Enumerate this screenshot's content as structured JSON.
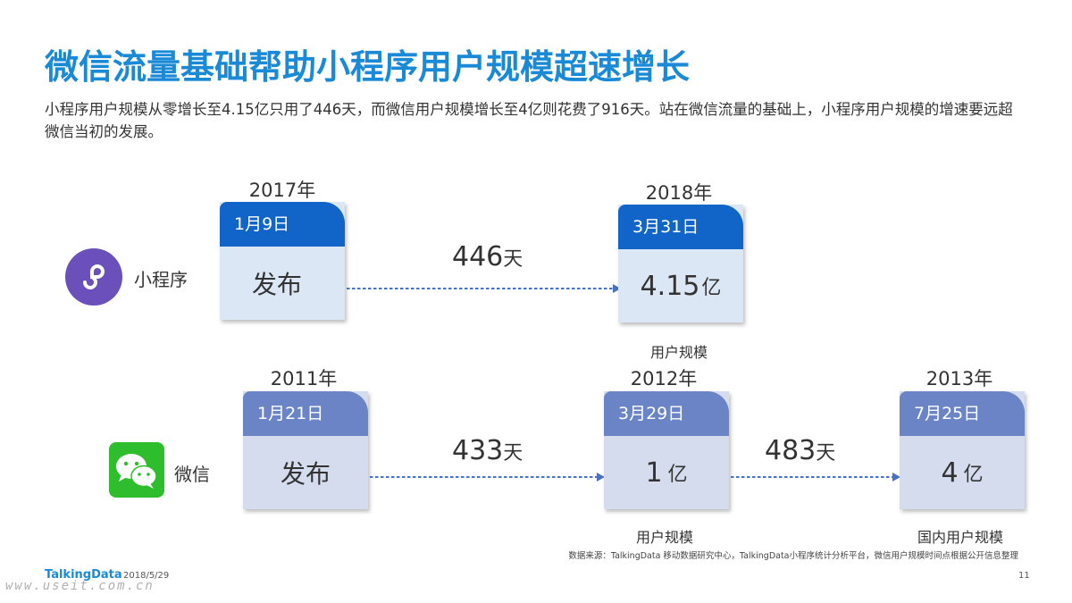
{
  "title": "微信流量基础帮助小程序用户规模超速增长",
  "subtitle": "小程序用户规模从零增长至4.15亿只用了446天，而微信用户规模增长至4亿则花费了916天。站在微信流量的基础上，小程序用户规模的增速要远超微信当初的发展。",
  "mini_program": {
    "name": "小程序",
    "icon": "mini-program-icon",
    "color": "#6b4fbb",
    "start": {
      "year": "2017年",
      "date": "1月9日",
      "value": "发布"
    },
    "gap": {
      "num": "446",
      "unit": "天"
    },
    "end": {
      "year": "2018年",
      "date": "3月31日",
      "num": "4.15",
      "unit": "亿",
      "caption": "用户规模"
    }
  },
  "wechat": {
    "name": "微信",
    "icon": "wechat-icon",
    "color": "#2dbd2d",
    "start": {
      "year": "2011年",
      "date": "1月21日",
      "value": "发布"
    },
    "gap1": {
      "num": "433",
      "unit": "天"
    },
    "mid": {
      "year": "2012年",
      "date": "3月29日",
      "num": "1",
      "unit": "亿",
      "caption": "用户规模"
    },
    "gap2": {
      "num": "483",
      "unit": "天"
    },
    "end": {
      "year": "2013年",
      "date": "7月25日",
      "num": "4",
      "unit": "亿",
      "caption": "国内用户规模"
    }
  },
  "colors": {
    "title": "#1a8ad6",
    "mp_header": "#1164c8",
    "wx_header": "#6a84c6",
    "arrow": "#4a72c0"
  },
  "footer": {
    "source": "数据来源：TalkingData 移动数据研究中心，TalkingData小程序统计分析平台，微信用户规模时间点根据公开信息整理",
    "logo": "TalkingData",
    "date": "2018/5/29",
    "page": "11",
    "watermark": "www.useit.com.cn"
  }
}
